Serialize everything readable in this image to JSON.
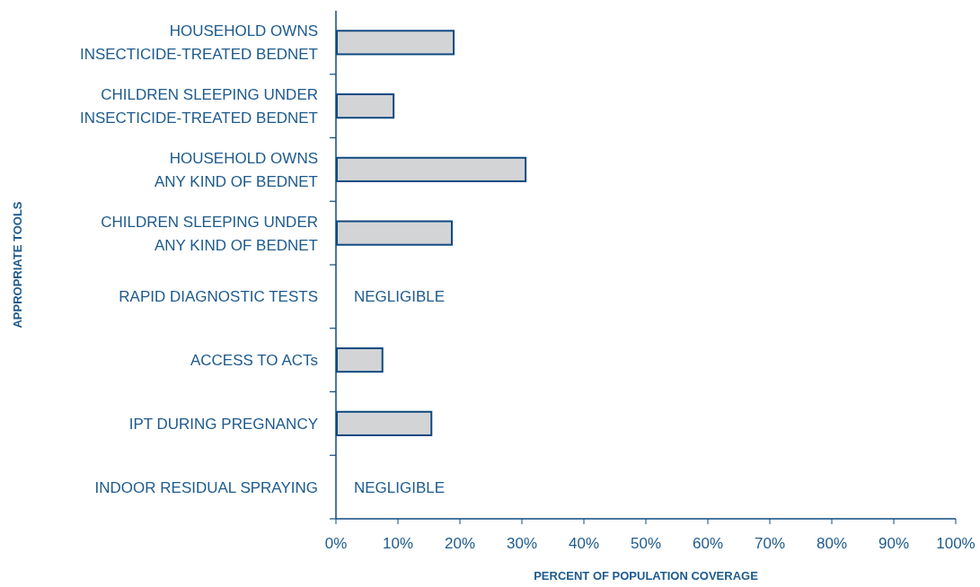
{
  "chart_data": {
    "type": "bar",
    "orientation": "horizontal",
    "xlabel": "PERCENT OF POPULATION COVERAGE",
    "ylabel": "APPROPRIATE TOOLS",
    "categories": [
      "HOUSEHOLD OWNS\nINSECTICIDE-TREATED BEDNET",
      "CHILDREN SLEEPING UNDER\nINSECTICIDE-TREATED BEDNET",
      "HOUSEHOLD OWNS\nANY KIND OF BEDNET",
      "CHILDREN SLEEPING UNDER\nANY KIND OF BEDNET",
      "RAPID DIAGNOSTIC TESTS",
      "ACCESS TO ACTs",
      "IPT DURING PREGNANCY",
      "INDOOR RESIDUAL SPRAYING"
    ],
    "values": [
      19,
      9.3,
      30.6,
      18.7,
      null,
      7.5,
      15.4,
      null
    ],
    "value_labels": [
      null,
      null,
      null,
      null,
      "NEGLIGIBLE",
      null,
      null,
      "NEGLIGIBLE"
    ],
    "color": "#d3d4d6",
    "xlim": [
      0,
      100
    ],
    "xticks": [
      {
        "value": 0,
        "label": "0%"
      },
      {
        "value": 10,
        "label": "10%"
      },
      {
        "value": 20,
        "label": "20%"
      },
      {
        "value": 30,
        "label": "30%"
      },
      {
        "value": 40,
        "label": "40%"
      },
      {
        "value": 50,
        "label": "50%"
      },
      {
        "value": 60,
        "label": "60%"
      },
      {
        "value": 70,
        "label": "70%"
      },
      {
        "value": 80,
        "label": "80%"
      },
      {
        "value": 90,
        "label": "90%"
      },
      {
        "value": 100,
        "label": "100%"
      }
    ],
    "grid": false
  }
}
